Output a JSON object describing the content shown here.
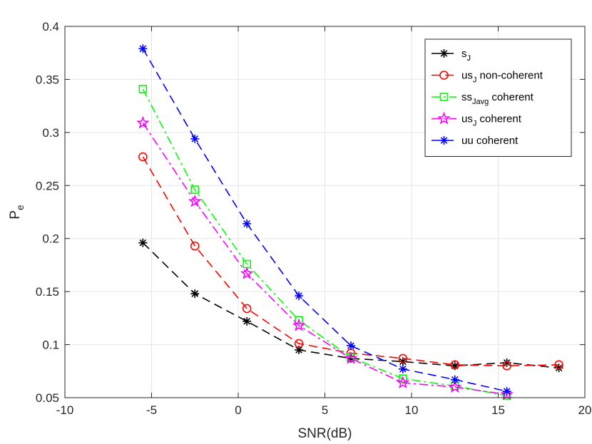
{
  "chart_data": {
    "type": "line",
    "title": "",
    "xlabel": "SNR(dB)",
    "ylabel": {
      "base": "P",
      "sub": "e"
    },
    "xlim": [
      -10,
      20
    ],
    "ylim": [
      0.05,
      0.4
    ],
    "xticks": [
      -10,
      -5,
      0,
      5,
      10,
      15,
      20
    ],
    "yticks": [
      0.05,
      0.1,
      0.15,
      0.2,
      0.25,
      0.3,
      0.35,
      0.4
    ],
    "xtick_labels": [
      "-10",
      "-5",
      "0",
      "5",
      "10",
      "15",
      "20"
    ],
    "ytick_labels": [
      "0.05",
      "0.1",
      "0.15",
      "0.2",
      "0.25",
      "0.3",
      "0.35",
      "0.4"
    ],
    "grid": true,
    "legend_position": "top-right",
    "series": [
      {
        "name": "s_J",
        "label_main": "s",
        "label_sub": "J",
        "label_rest": "",
        "color": "#000000",
        "dash": "dashed",
        "marker": "asterisk",
        "x": [
          -5.5,
          -2.5,
          0.5,
          3.5,
          6.5,
          9.5,
          12.5,
          15.5,
          18.5
        ],
        "y": [
          0.196,
          0.148,
          0.122,
          0.095,
          0.087,
          0.084,
          0.08,
          0.083,
          0.078
        ]
      },
      {
        "name": "us_J non-coherent",
        "label_main": "us",
        "label_sub": "J",
        "label_rest": " non-coherent",
        "color": "#ff0000",
        "dash": "dashed",
        "marker": "circle",
        "x": [
          -5.5,
          -2.5,
          0.5,
          3.5,
          6.5,
          9.5,
          12.5,
          15.5,
          18.5
        ],
        "y": [
          0.277,
          0.193,
          0.134,
          0.101,
          0.092,
          0.087,
          0.081,
          0.08,
          0.081
        ]
      },
      {
        "name": "ss_Javg coherent",
        "label_main": "ss",
        "label_sub": "Javg",
        "label_rest": " coherent",
        "color": "#00ff00",
        "dash": "dashdot",
        "marker": "square",
        "x": [
          -5.5,
          -2.5,
          0.5,
          3.5,
          6.5,
          9.5,
          12.5,
          15.5
        ],
        "y": [
          0.341,
          0.246,
          0.176,
          0.123,
          0.088,
          0.068,
          0.061,
          0.052
        ]
      },
      {
        "name": "us_J coherent",
        "label_main": "us",
        "label_sub": "J",
        "label_rest": " coherent",
        "color": "#ff00ff",
        "dash": "dashdot",
        "marker": "star",
        "x": [
          -5.5,
          -2.5,
          0.5,
          3.5,
          6.5,
          9.5,
          12.5,
          15.5
        ],
        "y": [
          0.309,
          0.235,
          0.167,
          0.118,
          0.087,
          0.064,
          0.06,
          0.053
        ]
      },
      {
        "name": "uu coherent",
        "label_main": "uu coherent",
        "label_sub": "",
        "label_rest": "",
        "color": "#0000ff",
        "dash": "dashed",
        "marker": "asterisk",
        "x": [
          -5.5,
          -2.5,
          0.5,
          3.5,
          6.5,
          9.5,
          12.5,
          15.5
        ],
        "y": [
          0.379,
          0.294,
          0.214,
          0.146,
          0.099,
          0.077,
          0.067,
          0.056
        ]
      }
    ]
  }
}
